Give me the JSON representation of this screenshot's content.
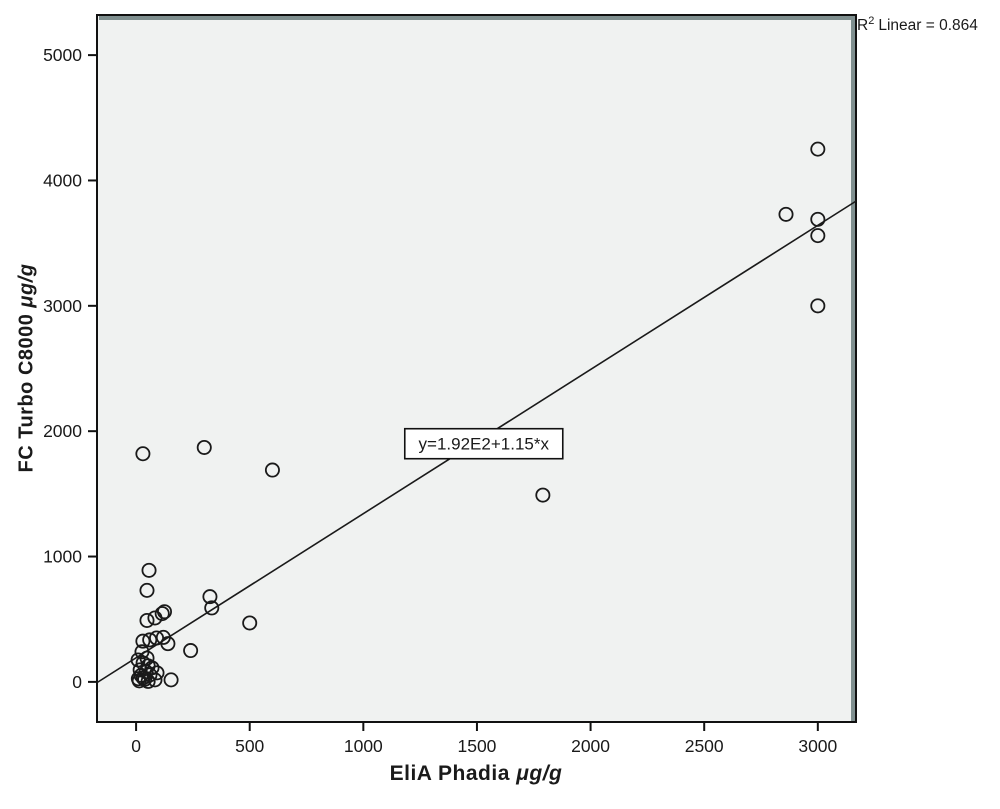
{
  "figure": {
    "r2_label": {
      "base": "R",
      "sup": "2",
      "rest": "Linear = 0.864"
    },
    "x_axis_title": {
      "main": "EliA Phadia ",
      "unit": "μg/g"
    },
    "y_axis_title": {
      "main": "FC Turbo C8000 ",
      "unit": "μg/g"
    }
  },
  "chart_data": {
    "type": "scatter",
    "title": "",
    "xlabel": "EliA Phadia μg/g",
    "ylabel": "FC Turbo C8000 μg/g",
    "x_ticks": [
      0,
      500,
      1000,
      1500,
      2000,
      2500,
      3000
    ],
    "y_ticks": [
      0,
      1000,
      2000,
      3000,
      4000,
      5000
    ],
    "x_range": [
      -172,
      3168
    ],
    "y_range": [
      -320,
      5320
    ],
    "grid": "off",
    "r2_annotation": "R2 Linear = 0.864",
    "trendline": {
      "slope": 1.15,
      "intercept": 192,
      "equation_label": "y=1.92E2+1.15*x"
    },
    "equation_box_pos": {
      "x": 1530,
      "y": 1900
    },
    "points": [
      {
        "x": 3000,
        "y": 4250
      },
      {
        "x": 2860,
        "y": 3730
      },
      {
        "x": 3000,
        "y": 3690
      },
      {
        "x": 3000,
        "y": 3560
      },
      {
        "x": 3000,
        "y": 3000
      },
      {
        "x": 1790,
        "y": 1490
      },
      {
        "x": 600,
        "y": 1690
      },
      {
        "x": 300,
        "y": 1870
      },
      {
        "x": 30,
        "y": 1820
      },
      {
        "x": 57,
        "y": 890
      },
      {
        "x": 48,
        "y": 730
      },
      {
        "x": 115,
        "y": 545
      },
      {
        "x": 125,
        "y": 560
      },
      {
        "x": 48,
        "y": 490
      },
      {
        "x": 83,
        "y": 510
      },
      {
        "x": 325,
        "y": 680
      },
      {
        "x": 333,
        "y": 590
      },
      {
        "x": 500,
        "y": 470
      },
      {
        "x": 240,
        "y": 250
      },
      {
        "x": 140,
        "y": 305
      },
      {
        "x": 30,
        "y": 325
      },
      {
        "x": 60,
        "y": 335
      },
      {
        "x": 90,
        "y": 350
      },
      {
        "x": 120,
        "y": 355
      },
      {
        "x": 26,
        "y": 240
      },
      {
        "x": 48,
        "y": 190
      },
      {
        "x": 92,
        "y": 72
      },
      {
        "x": 154,
        "y": 16
      },
      {
        "x": 9,
        "y": 175
      },
      {
        "x": 31,
        "y": 151
      },
      {
        "x": 53,
        "y": 128
      },
      {
        "x": 18,
        "y": 96
      },
      {
        "x": 44,
        "y": 80
      },
      {
        "x": 70,
        "y": 112
      },
      {
        "x": 61,
        "y": 56
      },
      {
        "x": 31,
        "y": 32
      },
      {
        "x": 53,
        "y": 4
      },
      {
        "x": 83,
        "y": 16
      },
      {
        "x": 14,
        "y": 8
      },
      {
        "x": 22,
        "y": 52
      },
      {
        "x": 38,
        "y": 20
      },
      {
        "x": 10,
        "y": 25
      }
    ],
    "colors": {
      "plot_bg": "#f0f2f1",
      "border": "#111111",
      "inner_shadow": "#7f8f8f",
      "point_stroke": "#1a1a1a",
      "line": "#1a1a1a",
      "equation_box_bg": "#ffffff"
    }
  }
}
